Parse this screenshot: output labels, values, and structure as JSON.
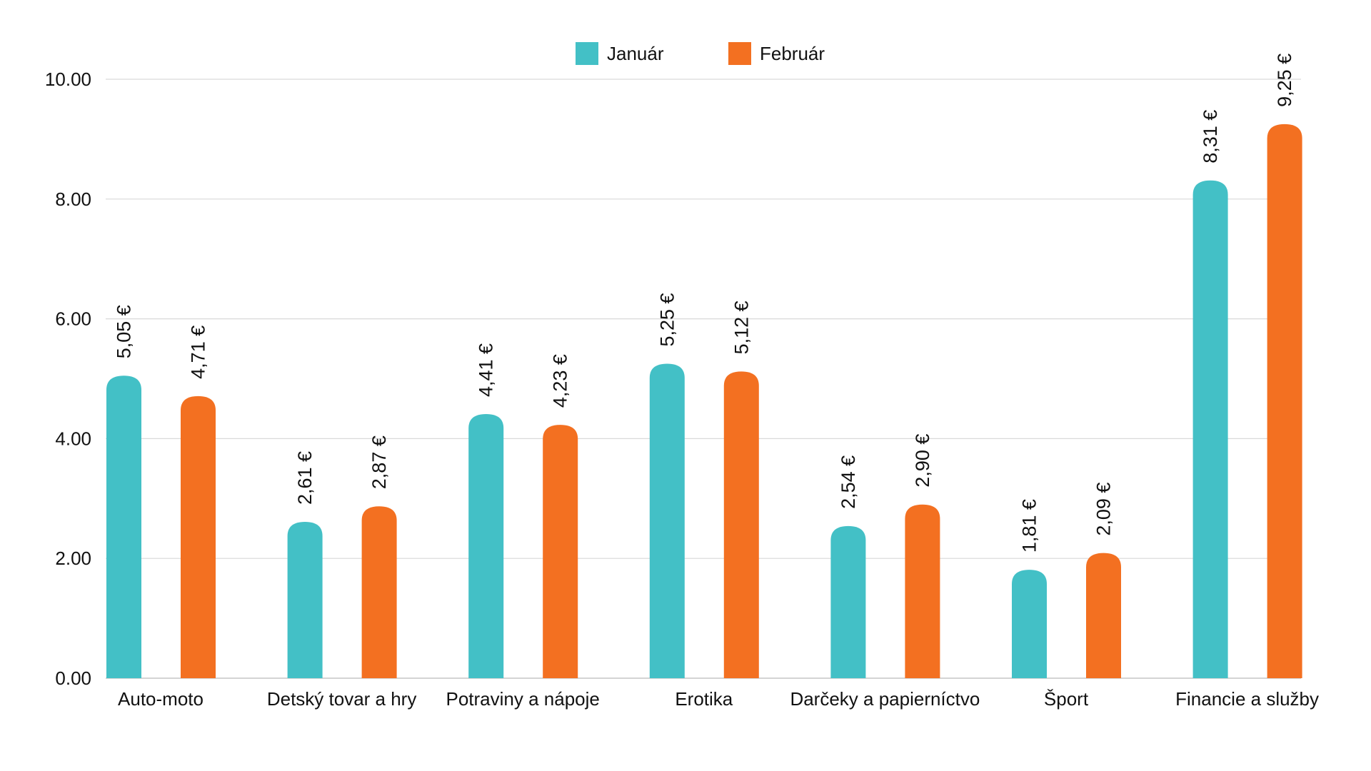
{
  "chart_data": {
    "type": "bar",
    "title": "",
    "xlabel": "",
    "ylabel": "",
    "ylim": [
      0,
      10
    ],
    "yticks": [
      "0.00",
      "2.00",
      "4.00",
      "6.00",
      "8.00",
      "10.00"
    ],
    "grid": true,
    "legend_position": "top-center",
    "categories": [
      "Auto-moto",
      "Detský tovar a hry",
      "Potraviny a nápoje",
      "Erotika",
      "Darčeky a papierníctvo",
      "Šport",
      "Financie a služby"
    ],
    "series": [
      {
        "name": "Január",
        "color": "#43c0c6",
        "values": [
          5.05,
          2.61,
          4.41,
          5.25,
          2.54,
          1.81,
          8.31
        ],
        "labels": [
          "5,05 €",
          "2,61 €",
          "4,41 €",
          "5,25 €",
          "2,54 €",
          "1,81 €",
          "8,31 €"
        ]
      },
      {
        "name": "Február",
        "color": "#f37021",
        "values": [
          4.71,
          2.87,
          4.23,
          5.12,
          2.9,
          2.09,
          9.25
        ],
        "labels": [
          "4,71 €",
          "2,87 €",
          "4,23 €",
          "5,12 €",
          "2,90 €",
          "2,09 €",
          "9,25 €"
        ]
      }
    ]
  }
}
